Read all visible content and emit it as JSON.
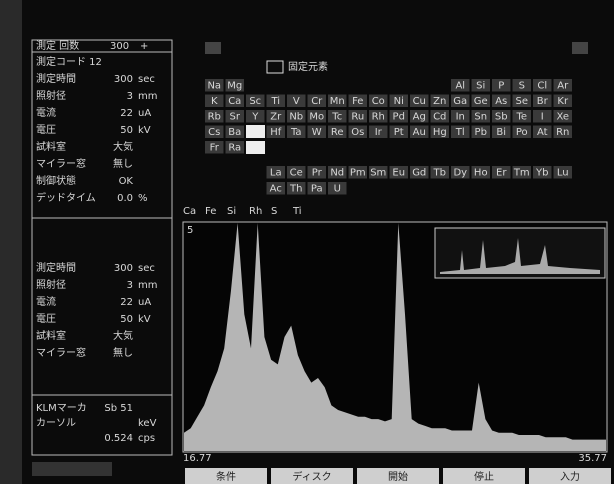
{
  "header": {
    "items": [
      "測定 回数",
      "300",
      "+"
    ]
  },
  "settings": [
    {
      "label": "測定コード 12"
    },
    {
      "label": "測定時間",
      "value": "300",
      "unit": "sec"
    },
    {
      "label": "照射径",
      "value": "3",
      "unit": "mm"
    },
    {
      "label": "電流",
      "value": "22",
      "unit": "uA"
    },
    {
      "label": "電圧",
      "value": "50",
      "unit": "kV"
    },
    {
      "label": "試料室",
      "value": "大気"
    },
    {
      "label": "マイラー窓",
      "value": "無し"
    },
    {
      "label": "制御状態",
      "value": "OK"
    },
    {
      "label": "デッドタイム",
      "value": "0.0",
      "unit": "%"
    }
  ],
  "settings2": [
    {
      "label": "測定時間",
      "value": "300",
      "unit": "sec"
    },
    {
      "label": "照射径",
      "value": "3",
      "unit": "mm"
    },
    {
      "label": "電流",
      "value": "22",
      "unit": "uA"
    },
    {
      "label": "電圧",
      "value": "50",
      "unit": "kV"
    },
    {
      "label": "試料室",
      "value": "大気"
    },
    {
      "label": "マイラー窓",
      "value": "無し"
    }
  ],
  "cursor": [
    {
      "label": "KLMマーカ",
      "value": "Sb 51"
    },
    {
      "label": "カーソル",
      "unit": "keV"
    },
    {
      "value": "0.524",
      "unit": "cps"
    }
  ],
  "legend": "固定元素",
  "periodic_table": {
    "rows": [
      [
        "Na",
        "Mg",
        null,
        null,
        null,
        null,
        null,
        null,
        null,
        null,
        null,
        null,
        "Al",
        "Si",
        "P",
        "S",
        "Cl",
        "Ar"
      ],
      [
        "K",
        "Ca",
        "Sc",
        "Ti",
        "V",
        "Cr",
        "Mn",
        "Fe",
        "Co",
        "Ni",
        "Cu",
        "Zn",
        "Ga",
        "Ge",
        "As",
        "Se",
        "Br",
        "Kr"
      ],
      [
        "Rb",
        "Sr",
        "Y",
        "Zr",
        "Nb",
        "Mo",
        "Tc",
        "Ru",
        "Rh",
        "Pd",
        "Ag",
        "Cd",
        "In",
        "Sn",
        "Sb",
        "Te",
        "I",
        "Xe"
      ],
      [
        "Cs",
        "Ba",
        null,
        "Hf",
        "Ta",
        "W",
        "Re",
        "Os",
        "Ir",
        "Pt",
        "Au",
        "Hg",
        "Tl",
        "Pb",
        "Bi",
        "Po",
        "At",
        "Rn"
      ],
      [
        "Fr",
        "Ra"
      ]
    ],
    "lanthanides": [
      "La",
      "Ce",
      "Pr",
      "Nd",
      "Pm",
      "Sm",
      "Eu",
      "Gd",
      "Tb",
      "Dy",
      "Ho",
      "Er",
      "Tm",
      "Yb",
      "Lu"
    ],
    "actinides": [
      "Ac",
      "Th",
      "Pa",
      "U"
    ]
  },
  "spectrum": {
    "markers": [
      "Ca",
      "Fe",
      "Si",
      "Rh",
      "S",
      "Ti"
    ],
    "scale": "5",
    "x_start": "16.77",
    "x_end": "35.77",
    "ylim": [
      0,
      100
    ],
    "values": [
      8,
      10,
      15,
      20,
      28,
      35,
      45,
      70,
      100,
      60,
      45,
      100,
      50,
      40,
      38,
      50,
      55,
      42,
      35,
      30,
      32,
      28,
      20,
      18,
      17,
      16,
      15,
      15,
      14,
      14,
      13,
      14,
      100,
      60,
      14,
      12,
      11,
      10,
      10,
      10,
      9,
      9,
      9,
      9,
      30,
      14,
      9,
      8,
      8,
      8,
      7,
      7,
      7,
      7,
      6,
      6,
      6,
      6,
      5,
      5,
      5,
      5,
      5,
      5
    ]
  },
  "buttons": [
    "条件",
    "ディスク",
    "開始",
    "停止",
    "入力"
  ]
}
